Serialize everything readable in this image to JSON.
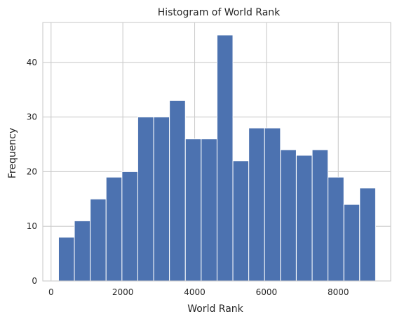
{
  "chart_data": {
    "type": "bar",
    "subtype": "histogram",
    "title": "Histogram of World Rank",
    "xlabel": "World Rank",
    "ylabel": "Frequency",
    "xlim": [
      -230,
      9460
    ],
    "ylim": [
      0,
      47.3
    ],
    "xticks": [
      0,
      2000,
      4000,
      6000,
      8000
    ],
    "yticks": [
      0,
      10,
      20,
      30,
      40
    ],
    "grid": true,
    "bar_color": "#4c72b0",
    "bins": [
      {
        "x0": 209,
        "x1": 650,
        "value": 8
      },
      {
        "x0": 650,
        "x1": 1092,
        "value": 11
      },
      {
        "x0": 1092,
        "x1": 1533,
        "value": 15
      },
      {
        "x0": 1533,
        "x1": 1975,
        "value": 19
      },
      {
        "x0": 1975,
        "x1": 2416,
        "value": 20
      },
      {
        "x0": 2416,
        "x1": 2858,
        "value": 30
      },
      {
        "x0": 2858,
        "x1": 3299,
        "value": 30
      },
      {
        "x0": 3299,
        "x1": 3741,
        "value": 33
      },
      {
        "x0": 3741,
        "x1": 4182,
        "value": 26
      },
      {
        "x0": 4182,
        "x1": 4624,
        "value": 26
      },
      {
        "x0": 4624,
        "x1": 5065,
        "value": 45
      },
      {
        "x0": 5065,
        "x1": 5507,
        "value": 22
      },
      {
        "x0": 5507,
        "x1": 5948,
        "value": 28
      },
      {
        "x0": 5948,
        "x1": 6390,
        "value": 28
      },
      {
        "x0": 6390,
        "x1": 6831,
        "value": 24
      },
      {
        "x0": 6831,
        "x1": 7273,
        "value": 23
      },
      {
        "x0": 7273,
        "x1": 7714,
        "value": 24
      },
      {
        "x0": 7714,
        "x1": 8156,
        "value": 19
      },
      {
        "x0": 8156,
        "x1": 8597,
        "value": 14
      },
      {
        "x0": 8597,
        "x1": 9039,
        "value": 17
      }
    ]
  }
}
